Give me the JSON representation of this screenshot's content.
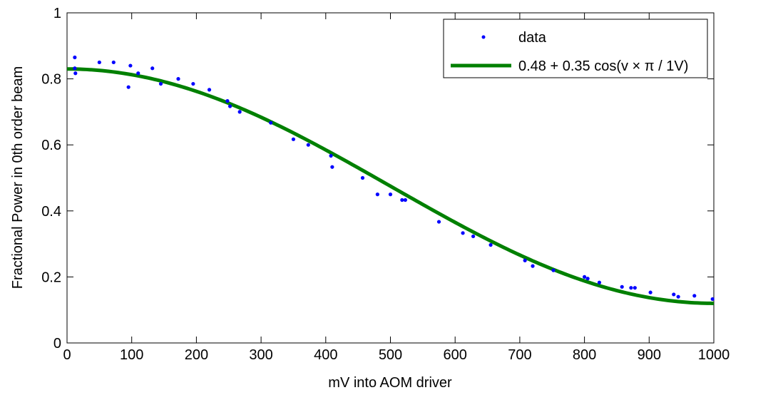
{
  "chart_data": {
    "type": "scatter",
    "xlabel": "mV into AOM driver",
    "ylabel": "Fractional Power in 0th order beam",
    "xlim": [
      0,
      1000
    ],
    "ylim": [
      0,
      1
    ],
    "xticks": [
      0,
      100,
      200,
      300,
      400,
      500,
      600,
      700,
      800,
      900,
      1000
    ],
    "yticks": [
      0,
      0.2,
      0.4,
      0.6,
      0.8,
      1
    ],
    "xtick_labels": [
      "0",
      "100",
      "200",
      "300",
      "400",
      "500",
      "600",
      "700",
      "800",
      "900",
      "1000"
    ],
    "ytick_labels": [
      "0",
      "0.2",
      "0.4",
      "0.6",
      "0.8",
      "1"
    ],
    "grid": false,
    "legend_position": "top-right",
    "series": [
      {
        "name": "data",
        "kind": "scatter",
        "color": "#0000ff",
        "points": [
          [
            12,
            0.865
          ],
          [
            12,
            0.832
          ],
          [
            13,
            0.817
          ],
          [
            50,
            0.85
          ],
          [
            72,
            0.85
          ],
          [
            95,
            0.775
          ],
          [
            98,
            0.84
          ],
          [
            110,
            0.817
          ],
          [
            132,
            0.832
          ],
          [
            145,
            0.785
          ],
          [
            172,
            0.8
          ],
          [
            195,
            0.785
          ],
          [
            220,
            0.767
          ],
          [
            248,
            0.733
          ],
          [
            252,
            0.717
          ],
          [
            267,
            0.7
          ],
          [
            315,
            0.667
          ],
          [
            350,
            0.617
          ],
          [
            373,
            0.6
          ],
          [
            408,
            0.567
          ],
          [
            410,
            0.533
          ],
          [
            457,
            0.5
          ],
          [
            480,
            0.45
          ],
          [
            500,
            0.45
          ],
          [
            518,
            0.433
          ],
          [
            523,
            0.433
          ],
          [
            575,
            0.367
          ],
          [
            612,
            0.333
          ],
          [
            628,
            0.323
          ],
          [
            655,
            0.297
          ],
          [
            708,
            0.25
          ],
          [
            720,
            0.233
          ],
          [
            752,
            0.22
          ],
          [
            800,
            0.2
          ],
          [
            805,
            0.195
          ],
          [
            823,
            0.183
          ],
          [
            858,
            0.17
          ],
          [
            872,
            0.167
          ],
          [
            878,
            0.167
          ],
          [
            902,
            0.153
          ],
          [
            938,
            0.147
          ],
          [
            945,
            0.14
          ],
          [
            970,
            0.143
          ],
          [
            998,
            0.133
          ]
        ]
      },
      {
        "name": "0.48 + 0.35 cos(v × π / 1V)",
        "kind": "line",
        "color": "#008000",
        "function": {
          "offset": 0.475,
          "amplitude": 0.355,
          "period_mV": 2000
        }
      }
    ]
  }
}
